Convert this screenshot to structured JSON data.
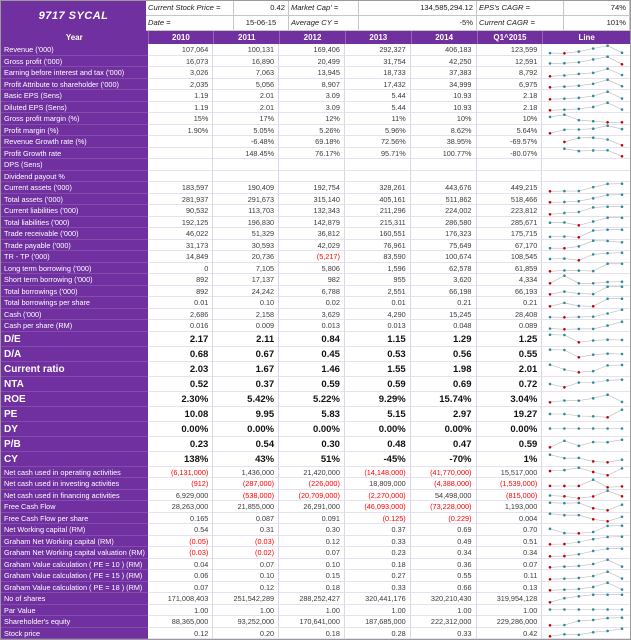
{
  "header": {
    "title": "9717 SYCAL",
    "stock_price_label": "Current Stock Price =",
    "stock_price_value": "0.42",
    "market_cap_label": "Market Cap' =",
    "market_cap_value": "134,585,294.12",
    "eps_cagr_label": "EPS's CAGR =",
    "eps_cagr_value": "74%",
    "date_label": "Date =",
    "date_value": "15-06-15",
    "avg_cy_label": "Average CY =",
    "avg_cy_value": "-5%",
    "current_cagr_label": "Current CAGR =",
    "current_cagr_value": "101%"
  },
  "colors": {
    "purple": "#7030A0",
    "negative": "#FF0000",
    "spark_dot": "#2E8B9A",
    "spark_low": "#C00000",
    "spark_line": "#B9B9B9"
  },
  "table": {
    "columns": [
      "Year",
      "2010",
      "2011",
      "2012",
      "2013",
      "2014",
      "Q1^2015",
      "Line"
    ],
    "rows": [
      {
        "label": "Revenue ('000)",
        "values": [
          "107,064",
          "100,131",
          "169,406",
          "292,327",
          "406,183",
          "123,599"
        ]
      },
      {
        "label": "Gross profit ('000)",
        "values": [
          "16,073",
          "16,890",
          "20,499",
          "31,754",
          "42,250",
          "12,591"
        ]
      },
      {
        "label": "Earning before interest and tax ('000)",
        "values": [
          "3,026",
          "7,063",
          "13,945",
          "18,733",
          "37,383",
          "8,792"
        ]
      },
      {
        "label": "Profit Attribute to shareholder ('000)",
        "values": [
          "2,035",
          "5,056",
          "8,907",
          "17,432",
          "34,999",
          "6,975"
        ]
      },
      {
        "label": "Basic EPS (Sens)",
        "values": [
          "1.19",
          "2.01",
          "3.09",
          "5.44",
          "10.93",
          "2.18"
        ]
      },
      {
        "label": "Diluted EPS (Sens)",
        "values": [
          "1.19",
          "2.01",
          "3.09",
          "5.44",
          "10.93",
          "2.18"
        ]
      },
      {
        "label": "Gross profit margin (%)",
        "values": [
          "15%",
          "17%",
          "12%",
          "11%",
          "10%",
          "10%"
        ]
      },
      {
        "label": "Profit margin (%)",
        "values": [
          "1.90%",
          "5.05%",
          "5.26%",
          "5.96%",
          "8.62%",
          "5.64%"
        ]
      },
      {
        "label": "Revenue Growth rate (%)",
        "values": [
          "",
          "-6.48%",
          "69.18%",
          "72.56%",
          "38.95%",
          "-69.57%"
        ]
      },
      {
        "label": "Profit Growth rate",
        "values": [
          "",
          "148.45%",
          "76.17%",
          "95.71%",
          "100.77%",
          "-80.07%"
        ]
      },
      {
        "label": "DPS (Sens)",
        "values": [
          "",
          "",
          "",
          "",
          "",
          ""
        ]
      },
      {
        "label": "Dividend payout %",
        "values": [
          "",
          "",
          "",
          "",
          "",
          ""
        ]
      },
      {
        "label": "Current assets ('000)",
        "values": [
          "183,597",
          "190,409",
          "192,754",
          "328,261",
          "443,676",
          "449,215"
        ]
      },
      {
        "label": "Total assets ('000)",
        "values": [
          "281,937",
          "291,673",
          "315,140",
          "405,161",
          "511,862",
          "518,466"
        ]
      },
      {
        "label": "Current liabilities ('000)",
        "values": [
          "90,532",
          "113,703",
          "132,343",
          "211,296",
          "224,002",
          "223,812"
        ]
      },
      {
        "label": "Total liabilities ('000)",
        "values": [
          "192,125",
          "196,830",
          "142,879",
          "215,311",
          "286,580",
          "285,671"
        ]
      },
      {
        "label": "Trade receivable ('000)",
        "values": [
          "46,022",
          "51,329",
          "36,812",
          "160,551",
          "176,323",
          "175,715"
        ]
      },
      {
        "label": "Trade payable ('000)",
        "values": [
          "31,173",
          "30,593",
          "42,029",
          "76,961",
          "75,649",
          "67,170"
        ]
      },
      {
        "label": "TR - TP ('000)",
        "values": [
          "14,849",
          "20,736",
          "(5,217)",
          "83,590",
          "100,674",
          "108,545"
        ]
      },
      {
        "label": "Long term borrowing ('000)",
        "values": [
          "0",
          "7,105",
          "5,806",
          "1,596",
          "62,578",
          "61,859"
        ]
      },
      {
        "label": "Short term borrowing ('000)",
        "values": [
          "892",
          "17,137",
          "982",
          "955",
          "3,620",
          "4,334"
        ]
      },
      {
        "label": "Total borrowings ('000)",
        "values": [
          "892",
          "24,242",
          "6,788",
          "2,551",
          "66,198",
          "66,193"
        ]
      },
      {
        "label": "Total borrowings per share",
        "values": [
          "0.01",
          "0.10",
          "0.02",
          "0.01",
          "0.21",
          "0.21"
        ]
      },
      {
        "label": "Cash ('000)",
        "values": [
          "2,686",
          "2,158",
          "3,629",
          "4,290",
          "15,245",
          "28,408"
        ]
      },
      {
        "label": "Cash per share (RM)",
        "values": [
          "0.016",
          "0.009",
          "0.013",
          "0.013",
          "0.048",
          "0.089"
        ]
      },
      {
        "label": "D/E",
        "bold": true,
        "values": [
          "2.17",
          "2.11",
          "0.84",
          "1.15",
          "1.29",
          "1.25"
        ]
      },
      {
        "label": "D/A",
        "bold": true,
        "values": [
          "0.68",
          "0.67",
          "0.45",
          "0.53",
          "0.56",
          "0.55"
        ]
      },
      {
        "label": "Current ratio",
        "bold": true,
        "values": [
          "2.03",
          "1.67",
          "1.46",
          "1.55",
          "1.98",
          "2.01"
        ]
      },
      {
        "label": "NTA",
        "bold": true,
        "values": [
          "0.52",
          "0.37",
          "0.59",
          "0.59",
          "0.69",
          "0.72"
        ]
      },
      {
        "label": "ROE",
        "bold": true,
        "values": [
          "2.30%",
          "5.42%",
          "5.22%",
          "9.29%",
          "15.74%",
          "3.04%"
        ]
      },
      {
        "label": "PE",
        "bold": true,
        "values": [
          "10.08",
          "9.95",
          "5.83",
          "5.15",
          "2.97",
          "19.27"
        ]
      },
      {
        "label": "DY",
        "bold": true,
        "values": [
          "0.00%",
          "0.00%",
          "0.00%",
          "0.00%",
          "0.00%",
          "0.00%"
        ]
      },
      {
        "label": "P/B",
        "bold": true,
        "values": [
          "0.23",
          "0.54",
          "0.30",
          "0.48",
          "0.47",
          "0.59"
        ]
      },
      {
        "label": "CY",
        "bold": true,
        "values": [
          "138%",
          "43%",
          "51%",
          "-45%",
          "-70%",
          "1%"
        ]
      },
      {
        "label": "Net cash used in operating activities",
        "values": [
          "(6,131,000)",
          "1,436,000",
          "21,420,000",
          "(14,148,000)",
          "(41,770,000)",
          "15,517,000"
        ]
      },
      {
        "label": "Net cash used in investing activities",
        "values": [
          "(912)",
          "(287,000)",
          "(226,000)",
          "18,809,000",
          "(4,388,000)",
          "(1,539,000)"
        ]
      },
      {
        "label": "Net cash used in financing activities",
        "values": [
          "6,929,000",
          "(538,000)",
          "(20,709,000)",
          "(2,270,000)",
          "54,498,000",
          "(815,000)"
        ]
      },
      {
        "label": "Free Cash Flow",
        "values": [
          "28,263,000",
          "21,855,000",
          "26,291,000",
          "(46,093,000)",
          "(73,228,000)",
          "1,193,000"
        ]
      },
      {
        "label": "Free Cash Flow per share",
        "values": [
          "0.165",
          "0.087",
          "0.091",
          "(0.125)",
          "(0.229)",
          "0.004"
        ]
      },
      {
        "label": "Net Working capital (RM)",
        "values": [
          "0.54",
          "0.31",
          "0.30",
          "0.37",
          "0.69",
          "0.70"
        ]
      },
      {
        "label": "Graham Net Working capital (RM)",
        "values": [
          "(0.05)",
          "(0.03)",
          "0.12",
          "0.33",
          "0.49",
          "0.51"
        ]
      },
      {
        "label": "Graham Net Working capital valuation (RM)",
        "values": [
          "(0.03)",
          "(0.02)",
          "0.07",
          "0.23",
          "0.34",
          "0.34"
        ]
      },
      {
        "label": "Graham Value calculation ( PE = 10 ) (RM)",
        "values": [
          "0.04",
          "0.07",
          "0.10",
          "0.18",
          "0.36",
          "0.07"
        ]
      },
      {
        "label": "Graham Value calculation ( PE = 15 ) (RM)",
        "values": [
          "0.06",
          "0.10",
          "0.15",
          "0.27",
          "0.55",
          "0.11"
        ]
      },
      {
        "label": "Graham Value calculation ( PE = 18 ) (RM)",
        "values": [
          "0.07",
          "0.12",
          "0.18",
          "0.33",
          "0.66",
          "0.13"
        ]
      },
      {
        "label": "No of shares",
        "values": [
          "171,008,403",
          "251,542,289",
          "288,252,427",
          "320,441,176",
          "320,210,430",
          "319,954,128"
        ]
      },
      {
        "label": "Par Value",
        "values": [
          "1.00",
          "1.00",
          "1.00",
          "1.00",
          "1.00",
          "1.00"
        ]
      },
      {
        "label": "Shareholder's equity",
        "values": [
          "88,365,000",
          "93,252,000",
          "170,641,000",
          "187,685,000",
          "222,312,000",
          "229,286,000"
        ]
      },
      {
        "label": "Stock price",
        "values": [
          "0.12",
          "0.20",
          "0.18",
          "0.28",
          "0.33",
          "0.42"
        ]
      }
    ]
  }
}
